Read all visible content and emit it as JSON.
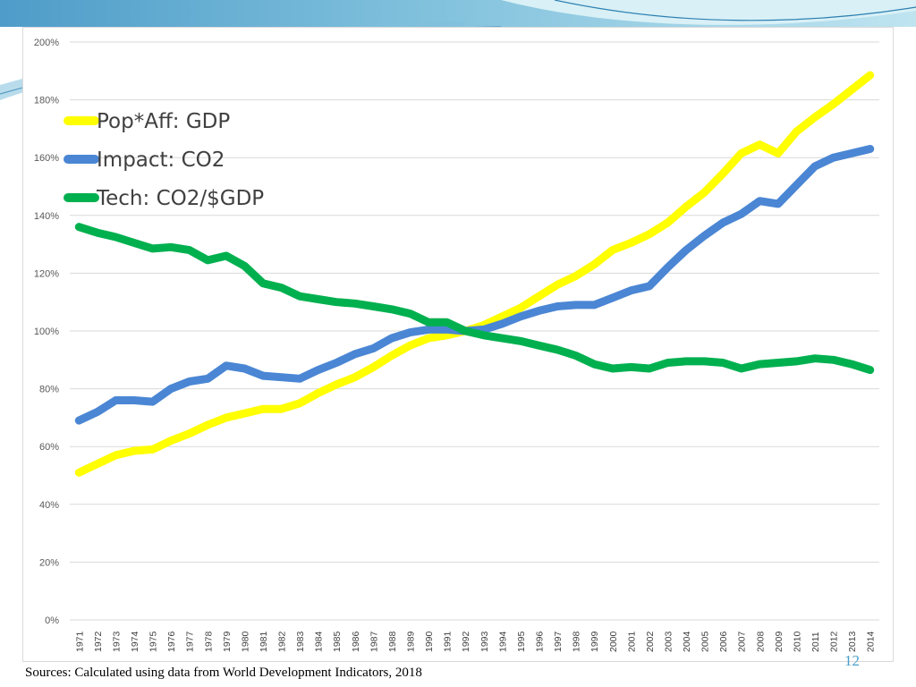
{
  "slide": {
    "source_note": "Sources: Calculated using data from  World Development Indicators, 2018",
    "slide_number": "12",
    "theme_colors": {
      "banner_dark": "#3b8fc0",
      "banner_light": "#a9d8ea"
    }
  },
  "chart_data": {
    "type": "line",
    "title": "",
    "xlabel": "",
    "ylabel": "",
    "ylim": [
      0,
      200
    ],
    "y_ticks": [
      "0%",
      "20%",
      "40%",
      "60%",
      "80%",
      "100%",
      "120%",
      "140%",
      "160%",
      "180%",
      "200%"
    ],
    "grid": "horizontal",
    "legend_position": "top-left",
    "x": [
      "1971",
      "1972",
      "1973",
      "1974",
      "1975",
      "1976",
      "1977",
      "1978",
      "1979",
      "1980",
      "1981",
      "1982",
      "1983",
      "1984",
      "1985",
      "1986",
      "1987",
      "1988",
      "1989",
      "1990",
      "1991",
      "1992",
      "1993",
      "1994",
      "1995",
      "1996",
      "1997",
      "1998",
      "1999",
      "2000",
      "2001",
      "2002",
      "2003",
      "2004",
      "2005",
      "2006",
      "2007",
      "2008",
      "2009",
      "2010",
      "2011",
      "2012",
      "2013",
      "2014"
    ],
    "series": [
      {
        "name": "Pop*Aff: GDP",
        "color": "#ffff00",
        "values": [
          51,
          54,
          57,
          58.5,
          59,
          62,
          64.5,
          67.5,
          70,
          71.5,
          73,
          73,
          75,
          78.5,
          81.5,
          84,
          87.5,
          91.5,
          95,
          97.5,
          98.5,
          100,
          102,
          105,
          108,
          112,
          116,
          119,
          123,
          128,
          130.5,
          133.5,
          137.5,
          143,
          148,
          154.5,
          161.5,
          164.5,
          161.5,
          169,
          174,
          178.5,
          183.5,
          188.5
        ]
      },
      {
        "name": "Impact: CO2",
        "color": "#4a86d4",
        "values": [
          69,
          72,
          76,
          76,
          75.5,
          80,
          82.5,
          83.5,
          88,
          87,
          84.5,
          84,
          83.5,
          86.5,
          89,
          92,
          94,
          97.5,
          99.5,
          100.5,
          100.5,
          100,
          100.5,
          102.5,
          105,
          107,
          108.5,
          109,
          109,
          111.5,
          114,
          115.5,
          122,
          128,
          133,
          137.5,
          140.5,
          145,
          144,
          150.5,
          157,
          160,
          161.5,
          163
        ]
      },
      {
        "name": "Tech: CO2/$GDP",
        "color": "#00b04f",
        "values": [
          136,
          134,
          132.5,
          130.5,
          128.5,
          129,
          128,
          124.5,
          126,
          122.5,
          116.5,
          115,
          112,
          111,
          110,
          109.5,
          108.5,
          107.5,
          106,
          103,
          103,
          100,
          98.5,
          97.5,
          96.5,
          95,
          93.5,
          91.5,
          88.5,
          87,
          87.5,
          87,
          89,
          89.5,
          89.5,
          89,
          87,
          88.5,
          89,
          89.5,
          90.5,
          90,
          88.5,
          86.5
        ]
      }
    ]
  }
}
